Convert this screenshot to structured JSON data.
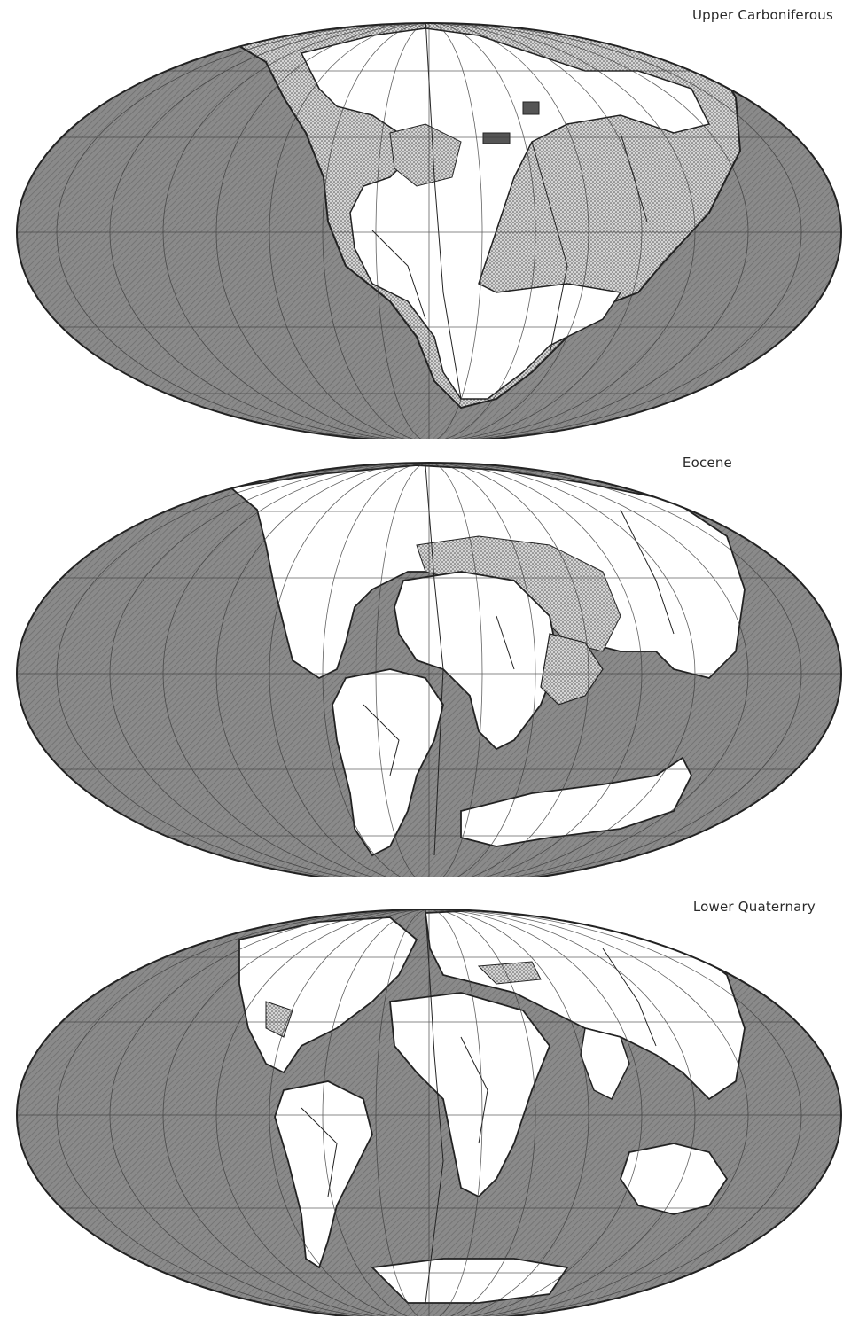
{
  "figure": {
    "maps": [
      {
        "period": "Upper Carboniferous"
      },
      {
        "period": "Eocene"
      },
      {
        "period": "Lower Quaternary"
      }
    ]
  },
  "colors": {
    "ocean": "#8a8a8a",
    "ocean_hatch": "#6f6f6f",
    "land": "#ffffff",
    "shallow_sea_stipple": "#5a5a5a",
    "coastline": "#222222",
    "graticule": "#3a3a3a"
  },
  "icons": {
    "projection": "mollweide-ellipse",
    "land_fill": "white-continent",
    "shallow_sea_fill": "dot-stipple",
    "ocean_fill": "diagonal-hatch"
  }
}
